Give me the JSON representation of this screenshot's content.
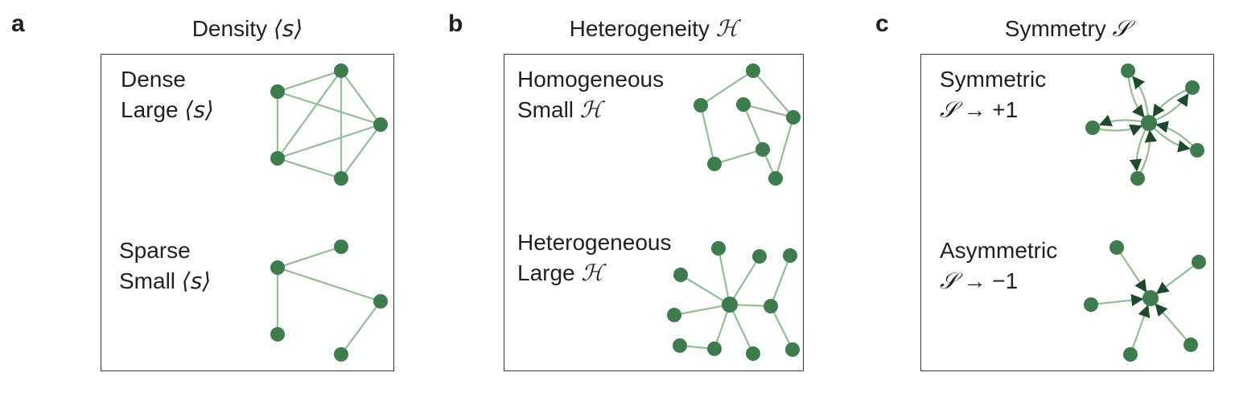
{
  "colors": {
    "node": "#3e7b4d",
    "edge": "#93bd95",
    "frame": "#3a3a3a",
    "text": "#231f20",
    "arrow": "#1e4a2c"
  },
  "panels": {
    "a": {
      "letter": "a",
      "title_text": "Density",
      "title_symbol": "⟨s⟩",
      "top": {
        "line1": "Dense",
        "line2_word": "Large",
        "line2_symbol": "⟨s⟩"
      },
      "bottom": {
        "line1": "Sparse",
        "line2_word": "Small",
        "line2_symbol": "⟨s⟩"
      }
    },
    "b": {
      "letter": "b",
      "title_text": "Heterogeneity",
      "title_symbol": "ℋ",
      "top": {
        "line1": "Homogeneous",
        "line2_word": "Small",
        "line2_symbol": "ℋ"
      },
      "bottom": {
        "line1": "Heterogeneous",
        "line2_word": "Large",
        "line2_symbol": "ℋ"
      }
    },
    "c": {
      "letter": "c",
      "title_text": "Symmetry",
      "title_symbol": "𝒮",
      "top": {
        "line1": "Symmetric",
        "line2_symbol": "𝒮",
        "line2_arrow": "→",
        "line2_value": "+1"
      },
      "bottom": {
        "line1": "Asymmetric",
        "line2_symbol": "𝒮",
        "line2_arrow": "→",
        "line2_value": "−1"
      }
    }
  }
}
